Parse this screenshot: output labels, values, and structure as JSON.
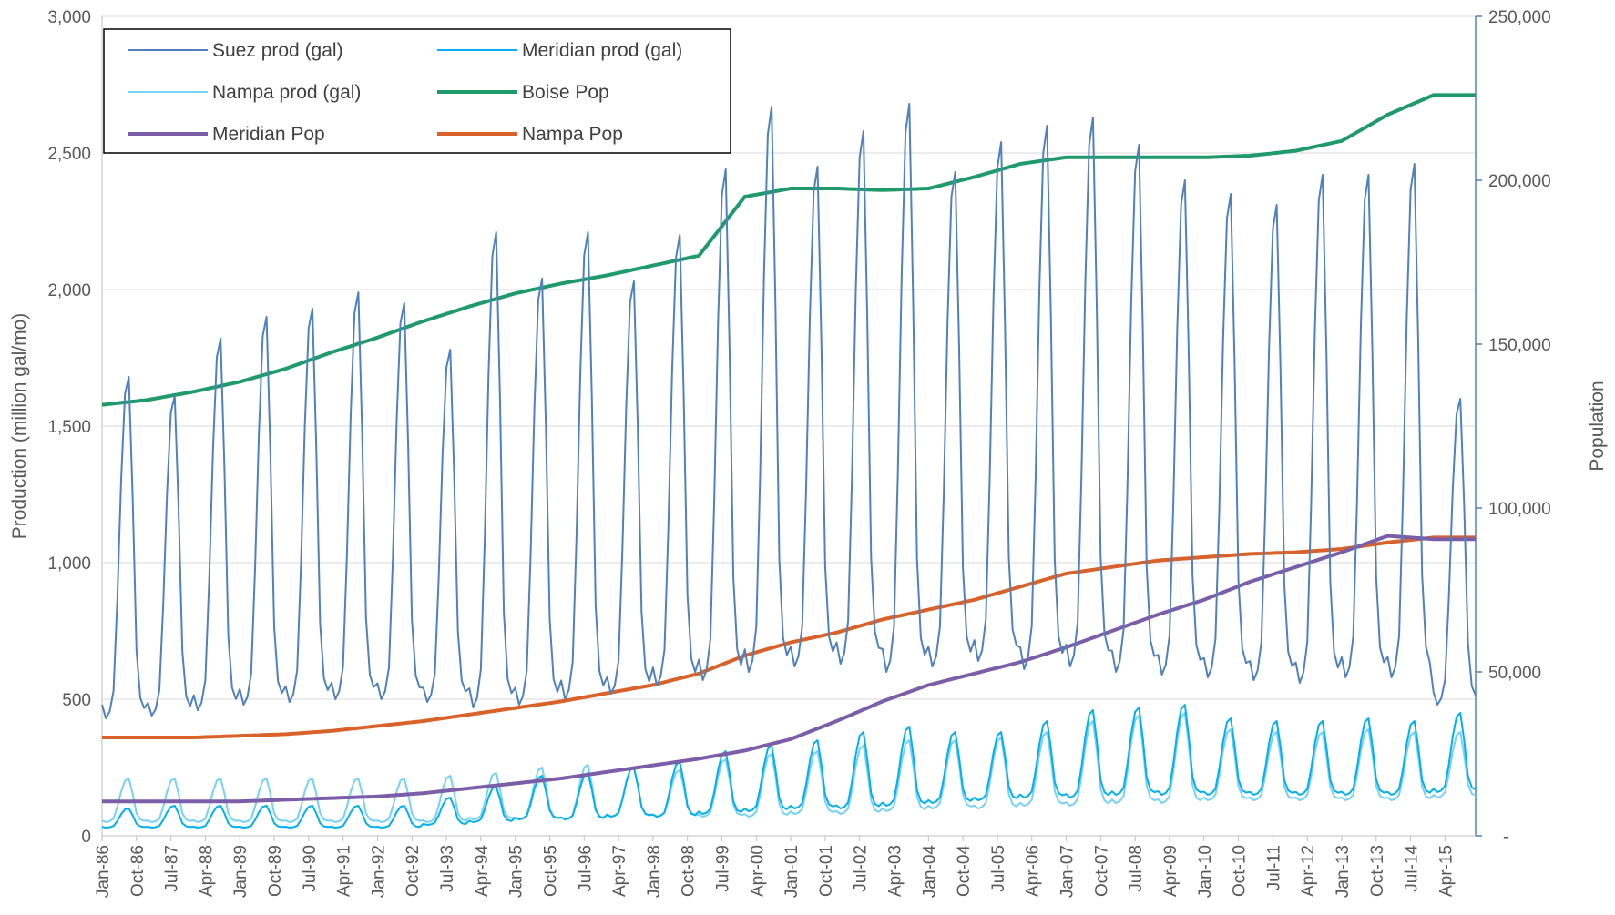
{
  "chart_data": {
    "type": "line",
    "title": "",
    "ylabel": "Production (million gal/mo)",
    "y2label": "Population",
    "ylim": [
      0,
      3000
    ],
    "y2lim": [
      0,
      250000
    ],
    "yticks": [
      "0",
      "500",
      "1,000",
      "1,500",
      "2,000",
      "2,500",
      "3,000"
    ],
    "y2ticks": [
      "-",
      "50,000",
      "100,000",
      "150,000",
      "200,000",
      "250,000"
    ],
    "xticks": [
      "Jan-86",
      "Oct-86",
      "Jul-87",
      "Apr-88",
      "Jan-89",
      "Oct-89",
      "Jul-90",
      "Apr-91",
      "Jan-92",
      "Oct-92",
      "Jul-93",
      "Apr-94",
      "Jan-95",
      "Oct-95",
      "Jul-96",
      "Apr-97",
      "Jan-98",
      "Oct-98",
      "Jul-99",
      "Apr-00",
      "Jan-01",
      "Oct-01",
      "Jul-02",
      "Apr-03",
      "Jan-04",
      "Oct-04",
      "Jul-05",
      "Apr-06",
      "Jan-07",
      "Oct-07",
      "Jul-08",
      "Apr-09",
      "Jan-10",
      "Oct-10",
      "Jul-11",
      "Apr-12",
      "Jan-13",
      "Oct-13",
      "Jul-14",
      "Apr-15"
    ],
    "x_start": "Jan-86",
    "x_end": "Dec-15",
    "gridlines": true,
    "legend_position": "top-left",
    "series": [
      {
        "name": "Suez prod (gal)",
        "axis": "left",
        "color": "#4f81bd",
        "summer_peaks": [
          1680,
          1610,
          1820,
          1900,
          1930,
          1990,
          1950,
          1780,
          2210,
          2040,
          2210,
          2030,
          2200,
          2440,
          2670,
          2450,
          2580,
          2680,
          2430,
          2540,
          2600,
          2630,
          2530,
          2400,
          2350,
          2310,
          2420,
          2420,
          2460,
          1600
        ],
        "winter_lows": [
          430,
          440,
          460,
          480,
          490,
          500,
          500,
          490,
          470,
          480,
          500,
          520,
          550,
          570,
          600,
          620,
          630,
          600,
          620,
          640,
          610,
          620,
          600,
          590,
          580,
          570,
          560,
          580,
          580,
          480
        ]
      },
      {
        "name": "Meridian prod (gal)",
        "axis": "left",
        "color": "#00b0f0",
        "summer_peaks": [
          100,
          110,
          110,
          110,
          110,
          110,
          110,
          140,
          180,
          220,
          230,
          250,
          270,
          310,
          330,
          350,
          380,
          400,
          380,
          380,
          420,
          460,
          470,
          480,
          430,
          420,
          420,
          430,
          420,
          450
        ],
        "winter_lows": [
          30,
          30,
          30,
          30,
          30,
          30,
          30,
          40,
          50,
          60,
          60,
          70,
          70,
          80,
          90,
          100,
          100,
          110,
          120,
          130,
          140,
          140,
          150,
          150,
          150,
          150,
          150,
          150,
          150,
          160
        ]
      },
      {
        "name": "Nampa prod (gal)",
        "axis": "left",
        "color": "#75d1f7",
        "summer_peaks": [
          210,
          210,
          210,
          210,
          210,
          210,
          210,
          220,
          230,
          250,
          260,
          250,
          240,
          280,
          300,
          310,
          330,
          350,
          350,
          360,
          380,
          420,
          440,
          450,
          390,
          380,
          380,
          390,
          380,
          380
        ],
        "winter_lows": [
          50,
          50,
          50,
          50,
          50,
          50,
          50,
          50,
          60,
          60,
          60,
          70,
          70,
          70,
          70,
          80,
          80,
          90,
          100,
          100,
          110,
          110,
          120,
          120,
          130,
          130,
          130,
          130,
          130,
          140
        ]
      },
      {
        "name": "Boise Pop",
        "axis": "right",
        "color": "#1f9a6b",
        "annual": [
          131500,
          133000,
          135500,
          138500,
          142500,
          147500,
          152000,
          157000,
          161500,
          165500,
          168500,
          171000,
          174000,
          177000,
          195000,
          197500,
          197500,
          197000,
          197500,
          201000,
          205000,
          207000,
          207000,
          207000,
          207000,
          207500,
          209000,
          212000,
          220000,
          226000
        ]
      },
      {
        "name": "Meridian Pop",
        "axis": "right",
        "color": "#7b5ea7",
        "annual": [
          10500,
          10500,
          10500,
          10500,
          11000,
          11500,
          12000,
          13000,
          14500,
          16000,
          17500,
          19500,
          21500,
          23500,
          26000,
          29500,
          35000,
          41000,
          46000,
          49500,
          53000,
          57500,
          62500,
          67500,
          72000,
          77500,
          82000,
          86500,
          91500,
          90500
        ]
      },
      {
        "name": "Nampa Pop",
        "axis": "right",
        "color": "#d9622b",
        "annual": [
          30000,
          30000,
          30000,
          30500,
          31000,
          32000,
          33500,
          35000,
          37000,
          39000,
          41000,
          43500,
          46000,
          49500,
          55000,
          59000,
          62000,
          66000,
          69000,
          72000,
          76000,
          80000,
          82000,
          84000,
          85000,
          86000,
          86500,
          87500,
          89500,
          91000
        ]
      }
    ]
  },
  "legend": [
    {
      "name": "Suez prod (gal)",
      "color": "#4f81bd",
      "width": 2
    },
    {
      "name": "Meridian prod (gal)",
      "color": "#00b0f0",
      "width": 2
    },
    {
      "name": "Nampa prod (gal)",
      "color": "#75d1f7",
      "width": 2
    },
    {
      "name": "Boise Pop",
      "color": "#1f9a6b",
      "width": 4
    },
    {
      "name": "Meridian Pop",
      "color": "#7b5ea7",
      "width": 4
    },
    {
      "name": "Nampa Pop",
      "color": "#d9622b",
      "width": 4
    }
  ]
}
